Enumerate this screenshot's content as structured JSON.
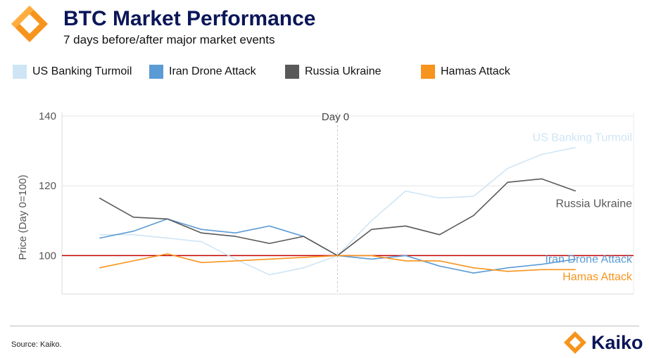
{
  "header": {
    "title": "BTC Market Performance",
    "subtitle": "7 days before/after major market events"
  },
  "footer": {
    "source": "Source: Kaiko.",
    "brand": "Kaiko"
  },
  "colors": {
    "navy": "#0b1659",
    "orange": "#f7941d",
    "baseline": "#c00000"
  },
  "chart_data": {
    "type": "line",
    "title": "BTC Market Performance",
    "subtitle": "7 days before/after major market events",
    "xlabel": "",
    "ylabel": "Price (Day 0=100)",
    "x": [
      -7,
      -6,
      -5,
      -4,
      -3,
      -2,
      -1,
      0,
      1,
      2,
      3,
      4,
      5,
      6,
      7
    ],
    "xlim": [
      -8.1,
      8.7
    ],
    "ylim": [
      89,
      141
    ],
    "yticks": [
      100,
      120,
      140
    ],
    "grid": "horizontal",
    "legend_position": "top",
    "baseline": 100,
    "day0": {
      "x": 0,
      "label": "Day 0"
    },
    "series": [
      {
        "name": "US Banking Turmoil",
        "color": "#cfe5f5",
        "values": [
          106,
          106,
          105,
          104,
          99,
          94.5,
          96.5,
          100,
          110,
          118.5,
          116.5,
          117,
          125,
          129,
          131
        ]
      },
      {
        "name": "Iran Drone Attack",
        "color": "#5b9bd5",
        "values": [
          105,
          107,
          110.5,
          107.5,
          106.5,
          108.5,
          105.5,
          100,
          99,
          100,
          97,
          95,
          96.5,
          97.5,
          99
        ]
      },
      {
        "name": "Russia Ukraine",
        "color": "#595959",
        "values": [
          116.5,
          111,
          110.5,
          106.5,
          105.5,
          103.5,
          105.5,
          100,
          107.5,
          108.5,
          106,
          111.5,
          121,
          122,
          118.5
        ]
      },
      {
        "name": "Hamas Attack",
        "color": "#f7941d",
        "values": [
          96.5,
          98.5,
          100.5,
          98,
          98.5,
          99,
          99.5,
          100,
          100,
          98.5,
          98.5,
          96.5,
          95.5,
          96,
          96
        ]
      }
    ]
  }
}
